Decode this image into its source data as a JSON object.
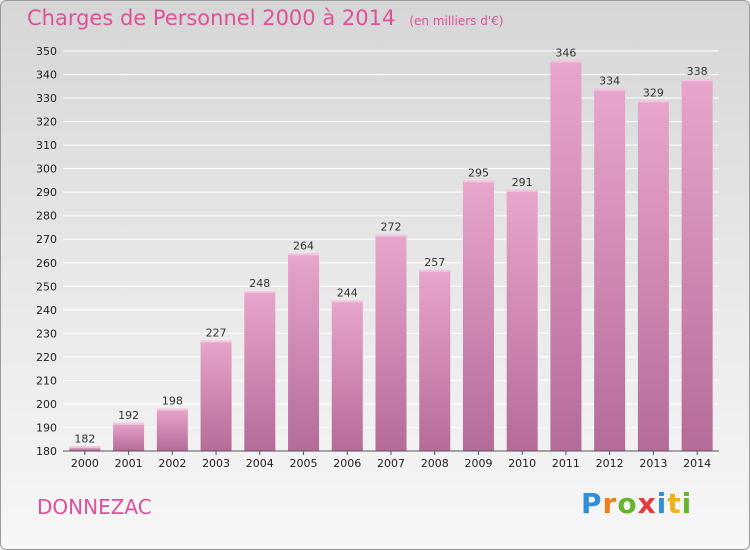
{
  "header": {
    "title": "Charges de Personnel 2000 à 2014",
    "subtitle": "(en milliers d'€)"
  },
  "footer": {
    "commune": "DONNEZAC",
    "logo_text": "Proxiti",
    "logo_letters": [
      {
        "char": "P",
        "color": "#2f8fd8"
      },
      {
        "char": "r",
        "color": "#f07f1a"
      },
      {
        "char": "o",
        "color": "#6ab32e"
      },
      {
        "char": "x",
        "color": "#e23c3c"
      },
      {
        "char": "i",
        "color": "#2f8fd8"
      },
      {
        "char": "t",
        "color": "#f0b21a"
      },
      {
        "char": "i",
        "color": "#6ab32e"
      }
    ]
  },
  "chart_data": {
    "type": "bar",
    "categories": [
      "2000",
      "2001",
      "2002",
      "2003",
      "2004",
      "2005",
      "2006",
      "2007",
      "2008",
      "2009",
      "2010",
      "2011",
      "2012",
      "2013",
      "2014"
    ],
    "values": [
      182,
      192,
      198,
      227,
      248,
      264,
      244,
      272,
      257,
      295,
      291,
      346,
      334,
      329,
      338
    ],
    "value_labels": [
      "182",
      "192",
      "198",
      "227",
      "248",
      "264",
      "244",
      "272",
      "257",
      "295",
      "291",
      "346",
      "334",
      "329",
      "338"
    ],
    "ylim": [
      180,
      350
    ],
    "yticks": [
      180,
      190,
      200,
      210,
      220,
      230,
      240,
      250,
      260,
      270,
      280,
      290,
      300,
      310,
      320,
      330,
      340,
      350
    ],
    "ytick_labels": [
      "180",
      "190",
      "200",
      "210",
      "220",
      "230",
      "240",
      "250",
      "260",
      "270",
      "280",
      "290",
      "300",
      "310",
      "320",
      "330",
      "340",
      "350"
    ],
    "grid": true,
    "colors": {
      "bar_light": "#e8a6cc",
      "bar_dark": "#b46b98",
      "grid": "#ffffff",
      "title": "#e0509a"
    }
  }
}
